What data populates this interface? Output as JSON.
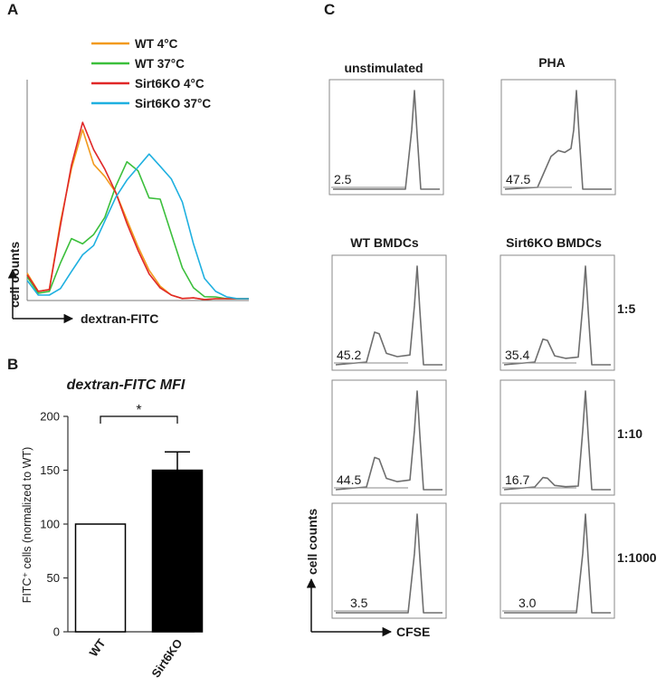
{
  "panels": {
    "a": "A",
    "b": "B",
    "c": "C"
  },
  "chart_data": [
    {
      "type": "line",
      "panel": "A",
      "title": "",
      "xlabel": "dextran-FITC",
      "ylabel": "cell counts",
      "legend_position": "top-left",
      "x": [
        0,
        5,
        10,
        15,
        20,
        25,
        30,
        35,
        40,
        45,
        50,
        55,
        60,
        65,
        70,
        75,
        80,
        85,
        90,
        95,
        100
      ],
      "ylim": [
        0,
        100
      ],
      "series": [
        {
          "name": "WT 4°C",
          "color": "#f29a1d",
          "values": [
            14,
            4,
            5,
            42,
            72,
            92,
            74,
            66,
            58,
            44,
            28,
            16,
            6,
            2,
            1,
            0,
            0,
            0,
            0,
            0,
            0
          ]
        },
        {
          "name": "WT 37°C",
          "color": "#3cbf3c",
          "values": [
            12,
            3,
            4,
            20,
            32,
            30,
            36,
            44,
            62,
            74,
            70,
            56,
            54,
            36,
            16,
            6,
            2,
            1,
            0,
            0,
            0
          ]
        },
        {
          "name": "Sirt6KO 4°C",
          "color": "#e02828",
          "values": [
            13,
            4,
            5,
            40,
            74,
            96,
            82,
            70,
            58,
            42,
            26,
            14,
            5,
            2,
            1,
            0,
            0,
            0,
            0,
            0,
            0
          ]
        },
        {
          "name": "Sirt6KO 37°C",
          "color": "#1fb0e0",
          "values": [
            10,
            2,
            2,
            6,
            14,
            24,
            30,
            42,
            56,
            64,
            72,
            80,
            72,
            66,
            52,
            30,
            12,
            4,
            1,
            0,
            0
          ]
        }
      ]
    },
    {
      "type": "bar",
      "panel": "B",
      "title": "dextran-FITC MFI",
      "xlabel": "",
      "ylabel": "FITC⁺ cells (normalized to WT)",
      "categories": [
        "WT",
        "Sirt6KO"
      ],
      "values": [
        100,
        150
      ],
      "errors": [
        0,
        17
      ],
      "colors": [
        "#ffffff",
        "#000000"
      ],
      "ylim": [
        0,
        200
      ],
      "yticks": [
        0,
        50,
        100,
        150,
        200
      ],
      "significance": "*"
    },
    {
      "type": "line",
      "panel": "C",
      "xlabel": "CFSE",
      "ylabel": "cell counts",
      "plots": [
        {
          "label": "unstimulated",
          "value": "2.5"
        },
        {
          "label": "PHA",
          "value": "47.5"
        },
        {
          "row": "1:5",
          "column": "WT BMDCs",
          "value": "45.2"
        },
        {
          "row": "1:5",
          "column": "Sirt6KO BMDCs",
          "value": "35.4"
        },
        {
          "row": "1:10",
          "column": "WT BMDCs",
          "value": "44.5"
        },
        {
          "row": "1:10",
          "column": "Sirt6KO BMDCs",
          "value": "16.7"
        },
        {
          "row": "1:1000",
          "column": "WT BMDCs",
          "value": "3.5"
        },
        {
          "row": "1:1000",
          "column": "Sirt6KO BMDCs",
          "value": "3.0"
        }
      ],
      "columns": [
        "WT BMDCs",
        "Sirt6KO BMDCs"
      ],
      "rows": [
        "1:5",
        "1:10",
        "1:1000"
      ]
    }
  ]
}
